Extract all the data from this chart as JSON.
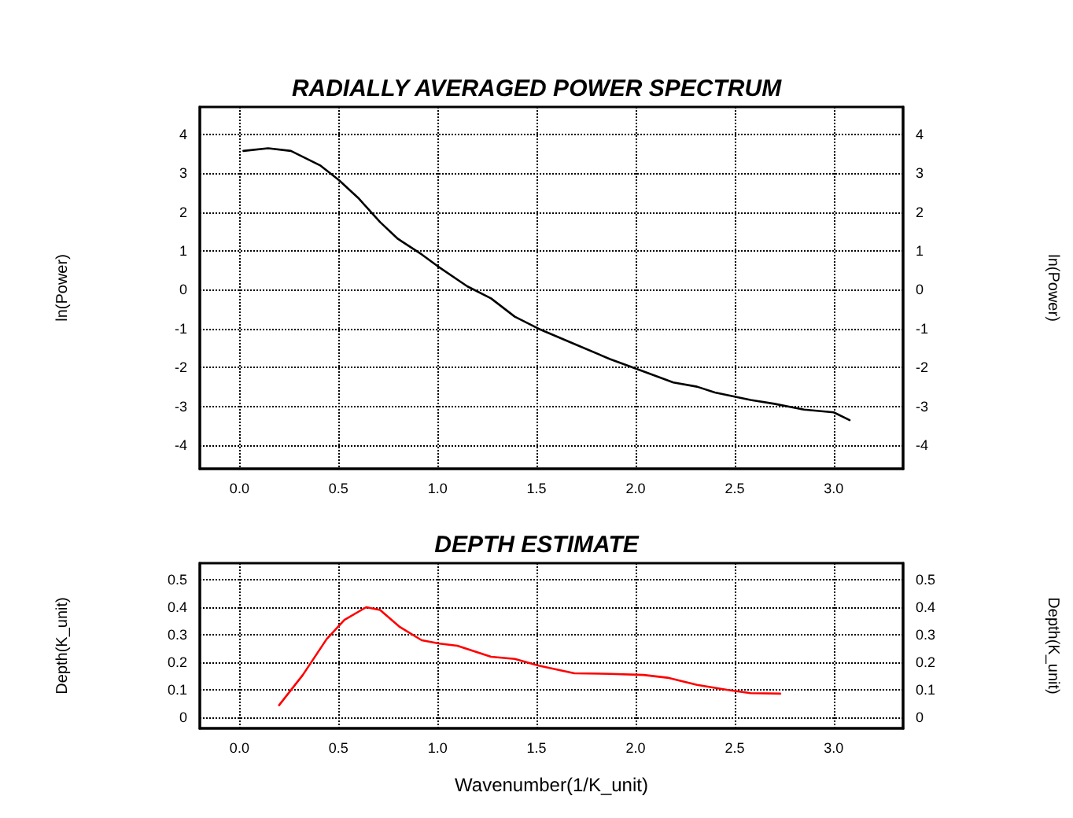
{
  "chart_data": [
    {
      "type": "line",
      "title": "RADIALLY AVERAGED POWER SPECTRUM",
      "ylabel": "ln(Power)",
      "y2label": "ln(Power)",
      "x": [
        0.02,
        0.145,
        0.26,
        0.41,
        0.5,
        0.6,
        0.71,
        0.8,
        0.92,
        1.0,
        1.15,
        1.27,
        1.39,
        1.51,
        1.69,
        1.87,
        2.04,
        2.19,
        2.31,
        2.4,
        2.58,
        2.7,
        2.85,
        3.0,
        3.08
      ],
      "series": [
        {
          "color": "#000000",
          "values": [
            3.57,
            3.64,
            3.57,
            3.19,
            2.83,
            2.36,
            1.74,
            1.31,
            0.91,
            0.61,
            0.09,
            -0.22,
            -0.69,
            -1.0,
            -1.39,
            -1.78,
            -2.1,
            -2.38,
            -2.49,
            -2.64,
            -2.83,
            -2.93,
            -3.08,
            -3.15,
            -3.35
          ]
        }
      ],
      "xlim": [
        -0.2,
        3.35
      ],
      "xticks": [
        {
          "value": 0,
          "label": "0.0"
        },
        {
          "value": 0.5,
          "label": "0.5"
        },
        {
          "value": 1,
          "label": "1.0"
        },
        {
          "value": 1.5,
          "label": "1.5"
        },
        {
          "value": 2,
          "label": "2.0"
        },
        {
          "value": 2.5,
          "label": "2.5"
        },
        {
          "value": 3,
          "label": "3.0"
        }
      ],
      "ylim": [
        -4.6,
        4.7
      ],
      "yticks": [
        -4,
        -3,
        -2,
        -1,
        0,
        1,
        2,
        3,
        4
      ],
      "y2lim": [
        -4.6,
        4.7
      ],
      "y2ticks": [
        -4,
        -3,
        -2,
        -1,
        0,
        1,
        2,
        3,
        4
      ],
      "grid": true,
      "line_style": "solid"
    },
    {
      "type": "line",
      "title": "DEPTH ESTIMATE",
      "xlabel": "Wavenumber(1/K_unit)",
      "ylabel": "Depth(K_unit)",
      "y2label": "Depth(K_unit)",
      "x": [
        0.2,
        0.32,
        0.44,
        0.53,
        0.64,
        0.71,
        0.81,
        0.92,
        1.01,
        1.1,
        1.27,
        1.39,
        1.51,
        1.69,
        1.87,
        2.04,
        2.16,
        2.31,
        2.46,
        2.58,
        2.73
      ],
      "series": [
        {
          "color": "#ff0000",
          "values": [
            0.044,
            0.154,
            0.284,
            0.354,
            0.4,
            0.39,
            0.328,
            0.28,
            0.268,
            0.26,
            0.22,
            0.212,
            0.188,
            0.16,
            0.158,
            0.154,
            0.144,
            0.118,
            0.1,
            0.088,
            0.086
          ]
        }
      ],
      "xlim": [
        -0.2,
        3.35
      ],
      "xticks": [
        {
          "value": 0,
          "label": "0.0"
        },
        {
          "value": 0.5,
          "label": "0.5"
        },
        {
          "value": 1,
          "label": "1.0"
        },
        {
          "value": 1.5,
          "label": "1.5"
        },
        {
          "value": 2,
          "label": "2.0"
        },
        {
          "value": 2.5,
          "label": "2.5"
        },
        {
          "value": 3,
          "label": "3.0"
        }
      ],
      "ylim": [
        -0.04,
        0.56
      ],
      "yticks": [
        0,
        0.1,
        0.2,
        0.3,
        0.4,
        0.5
      ],
      "y2lim": [
        -0.04,
        0.56
      ],
      "y2ticks": [
        0,
        0.1,
        0.2,
        0.3,
        0.4,
        0.5
      ],
      "grid": true,
      "line_style": "solid"
    }
  ]
}
